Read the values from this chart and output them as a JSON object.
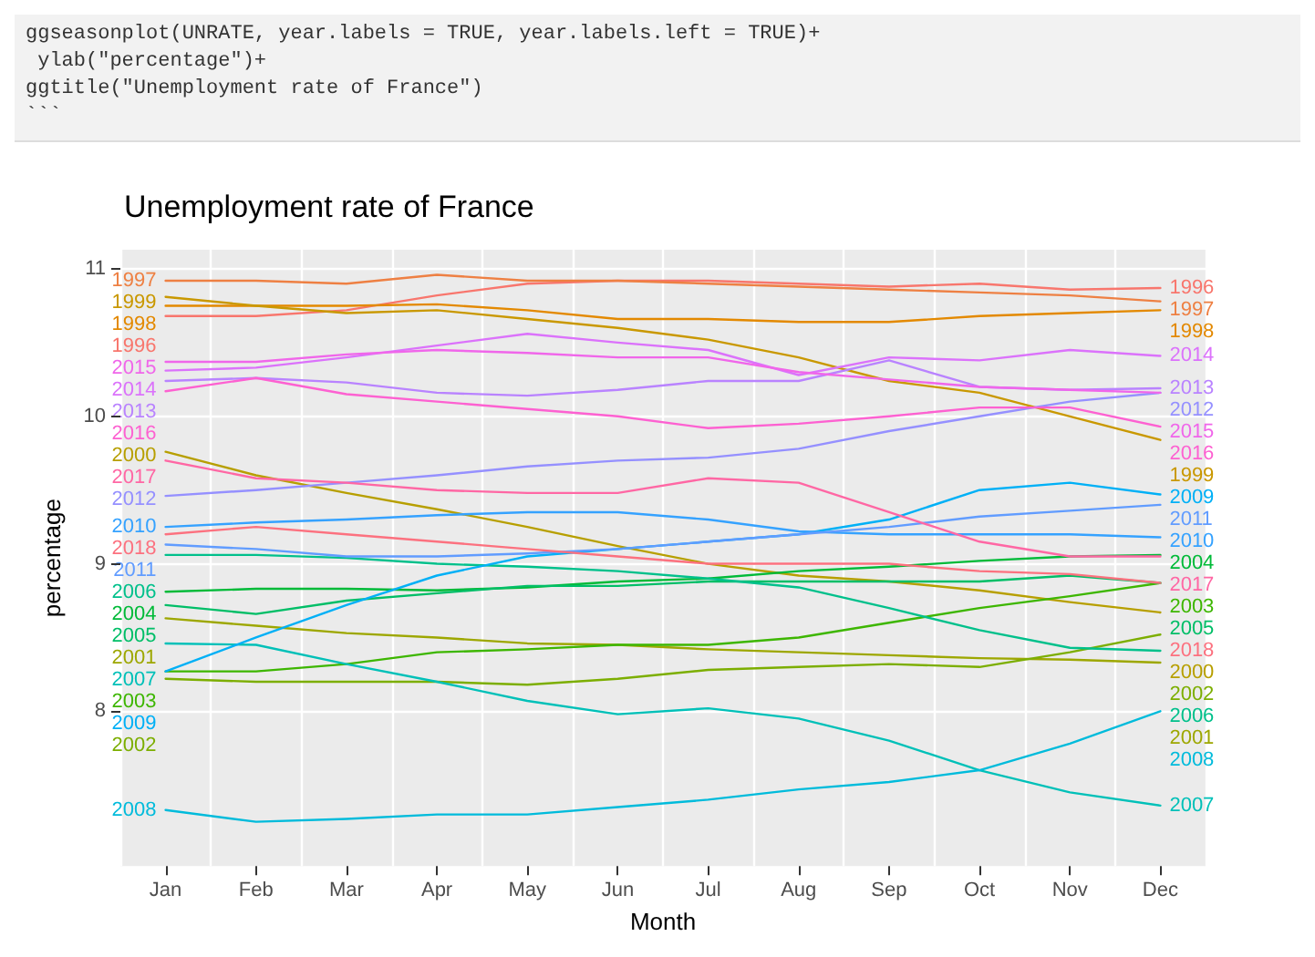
{
  "chart_data": {
    "type": "line",
    "title": "Unemployment rate of France",
    "xlabel": "Month",
    "ylabel": "percentage",
    "annotations": [
      "ggseasonplot(UNRATE, year.labels = TRUE, year.labels.left = TRUE)+",
      " ylab(\"percentage\")+",
      "ggtitle(\"Unemployment rate of France\")",
      "```"
    ],
    "categories": [
      "Jan",
      "Feb",
      "Mar",
      "Apr",
      "May",
      "Jun",
      "Jul",
      "Aug",
      "Sep",
      "Oct",
      "Nov",
      "Dec"
    ],
    "ylim": [
      6.95,
      11.13
    ],
    "yticks": [
      8,
      9,
      10,
      11
    ],
    "grid": true,
    "legend": false,
    "marker": "none",
    "line_style": "solid",
    "series": [
      {
        "name": "1996",
        "color": "#f8766d",
        "values": [
          10.68,
          10.68,
          10.72,
          10.82,
          10.9,
          10.92,
          10.92,
          10.9,
          10.88,
          10.9,
          10.86,
          10.87
        ]
      },
      {
        "name": "1997",
        "color": "#ee8043",
        "values": [
          10.92,
          10.92,
          10.9,
          10.96,
          10.92,
          10.92,
          10.9,
          10.88,
          10.86,
          10.84,
          10.82,
          10.78
        ]
      },
      {
        "name": "1998",
        "color": "#e38900",
        "values": [
          10.75,
          10.75,
          10.75,
          10.76,
          10.72,
          10.66,
          10.66,
          10.64,
          10.64,
          10.68,
          10.7,
          10.72
        ]
      },
      {
        "name": "1999",
        "color": "#c99800",
        "values": [
          10.81,
          10.75,
          10.7,
          10.72,
          10.66,
          10.6,
          10.52,
          10.4,
          10.24,
          10.16,
          10.0,
          9.84
        ]
      },
      {
        "name": "2000",
        "color": "#b79f00",
        "values": [
          9.76,
          9.6,
          9.48,
          9.37,
          9.25,
          9.12,
          9.0,
          8.92,
          8.88,
          8.82,
          8.74,
          8.67
        ]
      },
      {
        "name": "2001",
        "color": "#9da700",
        "values": [
          8.63,
          8.58,
          8.53,
          8.5,
          8.46,
          8.45,
          8.42,
          8.4,
          8.38,
          8.36,
          8.35,
          8.33
        ]
      },
      {
        "name": "2002",
        "color": "#7cae00",
        "values": [
          8.22,
          8.2,
          8.2,
          8.2,
          8.18,
          8.22,
          8.28,
          8.3,
          8.32,
          8.3,
          8.4,
          8.52
        ]
      },
      {
        "name": "2003",
        "color": "#3db600",
        "values": [
          8.27,
          8.27,
          8.32,
          8.4,
          8.42,
          8.45,
          8.45,
          8.5,
          8.6,
          8.7,
          8.78,
          8.87
        ]
      },
      {
        "name": "2004",
        "color": "#00ba38",
        "values": [
          8.81,
          8.83,
          8.83,
          8.82,
          8.84,
          8.88,
          8.9,
          8.95,
          8.98,
          9.02,
          9.05,
          9.06
        ]
      },
      {
        "name": "2005",
        "color": "#00be67",
        "values": [
          8.72,
          8.66,
          8.75,
          8.8,
          8.85,
          8.85,
          8.88,
          8.88,
          8.88,
          8.88,
          8.92,
          8.87
        ]
      },
      {
        "name": "2006",
        "color": "#00c08b",
        "values": [
          9.06,
          9.06,
          9.04,
          9.0,
          8.98,
          8.95,
          8.9,
          8.84,
          8.7,
          8.55,
          8.43,
          8.41
        ]
      },
      {
        "name": "2007",
        "color": "#00c0b8",
        "values": [
          8.46,
          8.45,
          8.32,
          8.2,
          8.07,
          7.98,
          8.02,
          7.95,
          7.8,
          7.6,
          7.45,
          7.36
        ]
      },
      {
        "name": "2008",
        "color": "#00bbdb",
        "values": [
          7.33,
          7.25,
          7.27,
          7.3,
          7.3,
          7.35,
          7.4,
          7.47,
          7.52,
          7.6,
          7.78,
          8.0
        ]
      },
      {
        "name": "2009",
        "color": "#00b0f6",
        "values": [
          8.27,
          8.5,
          8.72,
          8.92,
          9.05,
          9.1,
          9.15,
          9.2,
          9.3,
          9.5,
          9.55,
          9.47
        ]
      },
      {
        "name": "2010",
        "color": "#35a2ff",
        "values": [
          9.25,
          9.28,
          9.3,
          9.33,
          9.35,
          9.35,
          9.3,
          9.22,
          9.2,
          9.2,
          9.2,
          9.18
        ]
      },
      {
        "name": "2011",
        "color": "#619cff",
        "values": [
          9.13,
          9.1,
          9.05,
          9.05,
          9.07,
          9.1,
          9.15,
          9.2,
          9.25,
          9.32,
          9.36,
          9.4
        ]
      },
      {
        "name": "2012",
        "color": "#9590ff",
        "values": [
          9.46,
          9.5,
          9.55,
          9.6,
          9.66,
          9.7,
          9.72,
          9.78,
          9.9,
          10.0,
          10.1,
          10.16
        ]
      },
      {
        "name": "2013",
        "color": "#b983ff",
        "values": [
          10.24,
          10.26,
          10.23,
          10.16,
          10.14,
          10.18,
          10.24,
          10.24,
          10.38,
          10.2,
          10.18,
          10.19
        ]
      },
      {
        "name": "2014",
        "color": "#db72fb",
        "values": [
          10.31,
          10.33,
          10.4,
          10.48,
          10.56,
          10.5,
          10.45,
          10.28,
          10.4,
          10.38,
          10.45,
          10.41
        ]
      },
      {
        "name": "2015",
        "color": "#f066ea",
        "values": [
          10.37,
          10.37,
          10.42,
          10.45,
          10.43,
          10.4,
          10.4,
          10.3,
          10.25,
          10.2,
          10.18,
          10.16
        ]
      },
      {
        "name": "2016",
        "color": "#fd61d1",
        "values": [
          10.17,
          10.26,
          10.15,
          10.1,
          10.05,
          10.0,
          9.92,
          9.95,
          10.0,
          10.06,
          10.06,
          9.93
        ]
      },
      {
        "name": "2017",
        "color": "#ff67a4",
        "values": [
          9.7,
          9.58,
          9.55,
          9.5,
          9.48,
          9.48,
          9.58,
          9.55,
          9.35,
          9.15,
          9.05,
          9.05
        ]
      },
      {
        "name": "2018",
        "color": "#fc717f",
        "values": [
          9.2,
          9.25,
          9.2,
          9.15,
          9.1,
          9.05,
          9.0,
          9.0,
          9.0,
          8.95,
          8.93,
          8.87
        ]
      }
    ]
  }
}
